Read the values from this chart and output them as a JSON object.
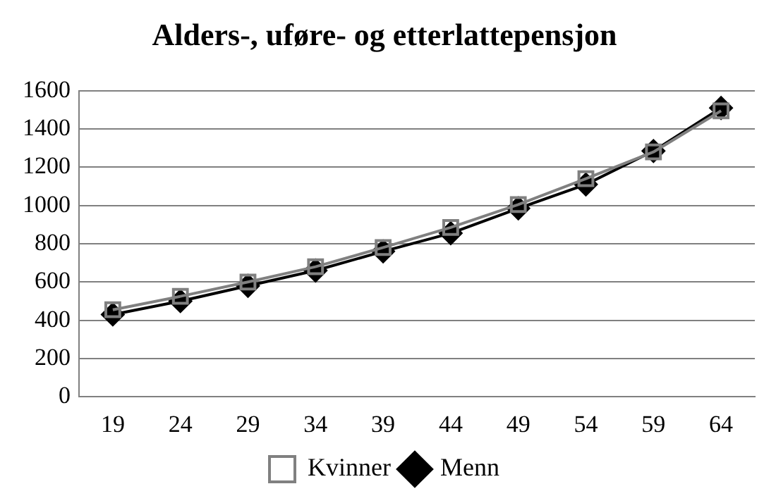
{
  "chart_data": {
    "type": "line",
    "title": "Alders-, uføre- og etterlattepensjon",
    "categories": [
      "19",
      "24",
      "29",
      "34",
      "39",
      "44",
      "49",
      "54",
      "59",
      "64"
    ],
    "series": [
      {
        "name": "Kvinner",
        "color": "#808080",
        "marker": "square",
        "values": [
          455,
          525,
          600,
          680,
          780,
          885,
          1005,
          1140,
          1280,
          1495
        ]
      },
      {
        "name": "Menn",
        "color": "#000000",
        "marker": "diamond",
        "values": [
          430,
          500,
          580,
          660,
          760,
          855,
          985,
          1110,
          1285,
          1510
        ]
      }
    ],
    "ylim": [
      0,
      1600
    ],
    "yticks": [
      0,
      200,
      400,
      600,
      800,
      1000,
      1200,
      1400,
      1600
    ],
    "grid": "y",
    "legend": "bottom"
  }
}
